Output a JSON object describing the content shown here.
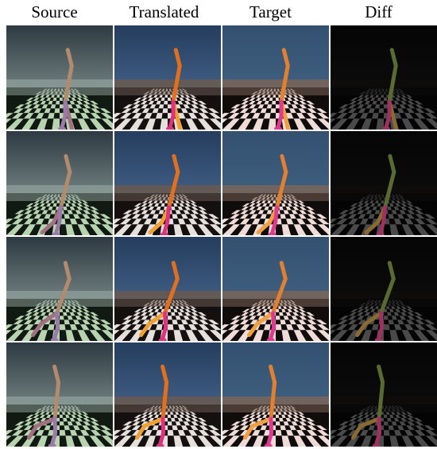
{
  "figure": {
    "columns": [
      "Source",
      "Translated",
      "Target",
      "Diff"
    ],
    "styles": {
      "Source": {
        "sky_top": "#2d3a42",
        "sky_bottom": "#6f7e7e",
        "horizon": "#8a9a96",
        "floor_light": "#b7d3b0",
        "floor_dark": "#101a12",
        "limb": "#a07080",
        "limb2": "#b28a6e",
        "foot": "#9a7aa8"
      },
      "Translated": {
        "sky_top": "#253d5e",
        "sky_bottom": "#3f5d82",
        "horizon": "#6a5a50",
        "floor_light": "#e6e0dc",
        "floor_dark": "#141010",
        "limb": "#f0a030",
        "limb2": "#e07020",
        "foot": "#e03080"
      },
      "Target": {
        "sky_top": "#33506f",
        "sky_bottom": "#3f5f80",
        "horizon": "#7a6458",
        "floor_light": "#f0dcd6",
        "floor_dark": "#100c0c",
        "limb": "#f0a040",
        "limb2": "#e08030",
        "foot": "#e03a90"
      },
      "Diff": {
        "sky_top": "#050505",
        "sky_bottom": "#0b0b0b",
        "horizon": "#0e0d0c",
        "floor_light": "#4a4a4a",
        "floor_dark": "#040404",
        "limb": "#8a6a30",
        "limb2": "#5a6a30",
        "foot": "#a03060"
      }
    },
    "poses": [
      {
        "thigh": -0.2,
        "shin": 0.05,
        "torso_lean": 0.18,
        "leg2": 0.0
      },
      {
        "thigh": 0.35,
        "shin": 0.3,
        "torso_lean": 0.25,
        "leg2": -0.3
      },
      {
        "thigh": 0.85,
        "shin": -0.4,
        "torso_lean": 0.35,
        "leg2": 0.2
      },
      {
        "thigh": 1.1,
        "shin": -0.7,
        "torso_lean": 0.1,
        "leg2": 0.1
      }
    ]
  }
}
